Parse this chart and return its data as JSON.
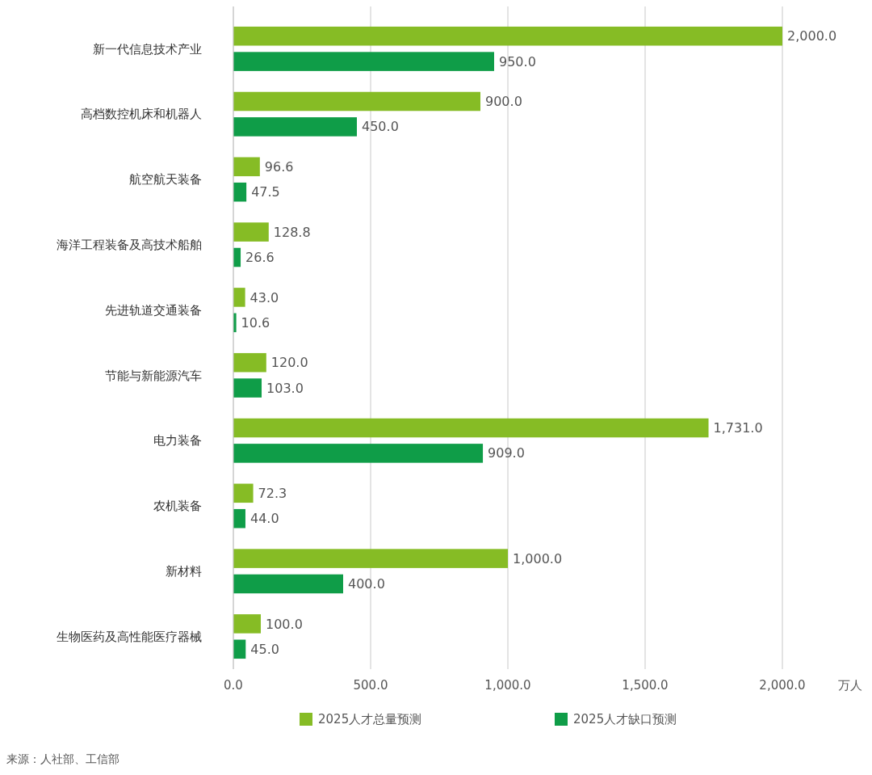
{
  "chart_data": {
    "type": "bar",
    "orientation": "horizontal",
    "categories": [
      "新一代信息技术产业",
      "高档数控机床和机器人",
      "航空航天装备",
      "海洋工程装备及高技术船舶",
      "先进轨道交通装备",
      "节能与新能源汽车",
      "电力装备",
      "农机装备",
      "新材料",
      "生物医药及高性能医疗器械"
    ],
    "series": [
      {
        "name": "2025人才总量预测",
        "color": "#86bc25",
        "values": [
          2000,
          900,
          96.6,
          128.8,
          43,
          120,
          1731,
          72.3,
          1000,
          100
        ],
        "value_labels": [
          "2,000.0",
          "900.0",
          "96.6",
          "128.8",
          "43.0",
          "120.0",
          "1,731.0",
          "72.3",
          "1,000.0",
          "100.0"
        ]
      },
      {
        "name": "2025人才缺口预测",
        "color": "#0f9d48",
        "values": [
          950,
          450,
          47.5,
          26.6,
          10.6,
          103,
          909,
          44,
          400,
          45
        ],
        "value_labels": [
          "950.0",
          "450.0",
          "47.5",
          "26.6",
          "10.6",
          "103.0",
          "909.0",
          "44.0",
          "400.0",
          "45.0"
        ]
      }
    ],
    "xlim": [
      0,
      2000
    ],
    "xticks": [
      {
        "value": 0,
        "label": "0.0"
      },
      {
        "value": 500,
        "label": "500.0"
      },
      {
        "value": 1000,
        "label": "1,000.0"
      },
      {
        "value": 1500,
        "label": "1,500.0"
      },
      {
        "value": 2000,
        "label": "2,000.0"
      }
    ],
    "xlabel": "万人",
    "grid": "x",
    "legend": "bottom",
    "annotations": [
      "来源：人社部、工信部"
    ]
  }
}
